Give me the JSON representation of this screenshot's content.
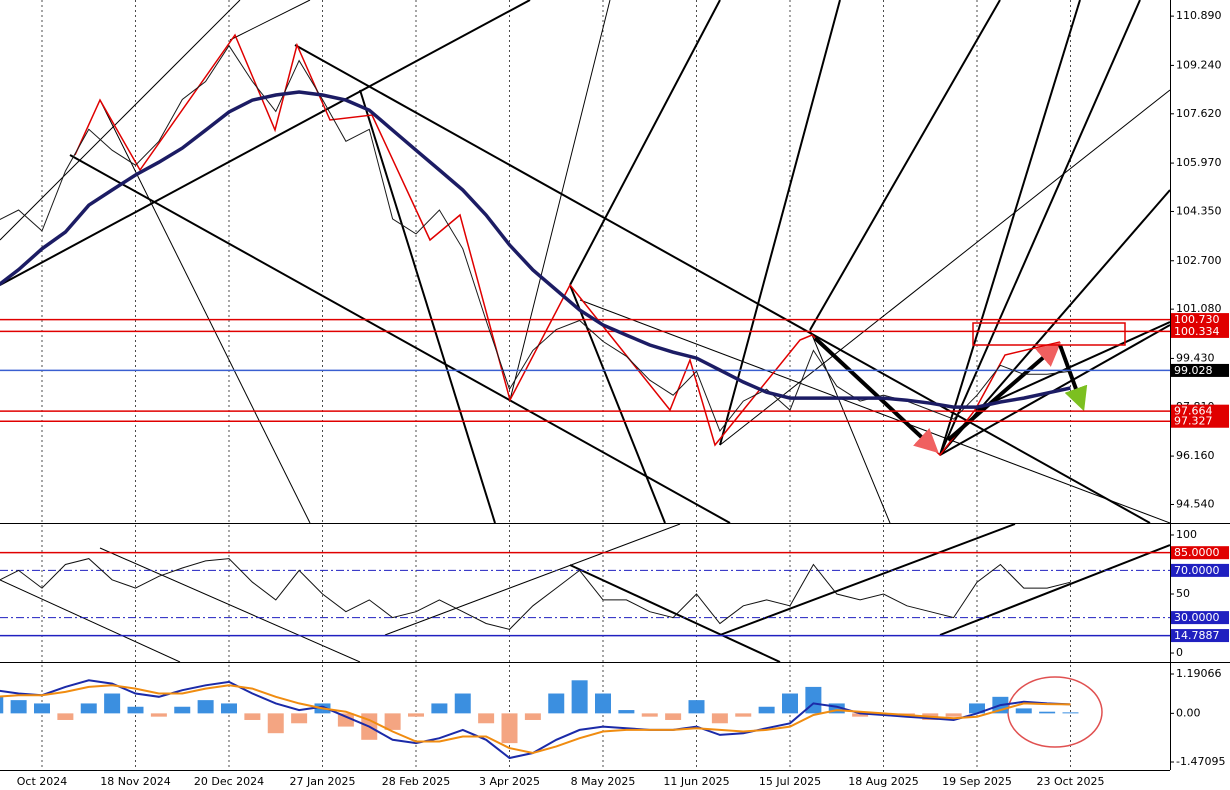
{
  "chart_data": [
    {
      "type": "line",
      "categories": [
        null,
        null,
        "Oct 2024",
        null,
        null,
        null,
        "18 Nov 2024",
        null,
        null,
        null,
        "20 Dec 2024",
        null,
        null,
        null,
        "27 Jan 2025",
        null,
        null,
        null,
        "28 Feb 2025",
        null,
        null,
        null,
        "3 Apr 2025",
        null,
        null,
        null,
        "8 May 2025",
        null,
        null,
        null,
        "11 Jun 2025",
        null,
        null,
        null,
        "15 Jul 2025",
        null,
        null,
        null,
        "18 Aug 2025",
        null,
        null,
        null,
        "19 Sep 2025",
        null,
        null,
        null,
        "23 Oct 2025"
      ],
      "series": [
        {
          "color": "#1a1a1a",
          "values": [
            104.0,
            104.4,
            103.7,
            105.7,
            107.1,
            106.4,
            105.9,
            106.7,
            108.1,
            108.7,
            109.9,
            108.7,
            107.7,
            109.4,
            108.1,
            106.7,
            107.1,
            104.1,
            103.6,
            104.4,
            103.1,
            100.7,
            98.4,
            99.7,
            100.4,
            100.7,
            100.0,
            99.5,
            98.7,
            98.2,
            99.0,
            97.0,
            98.0,
            98.4,
            97.7,
            99.7,
            98.5,
            98.0,
            98.2,
            98.0,
            97.7,
            97.4,
            98.2,
            99.2,
            98.9,
            98.9,
            99.0
          ]
        },
        {
          "color": "#1c1c64",
          "values": [
            101.8,
            102.4,
            103.1,
            103.66,
            104.56,
            105.07,
            105.57,
            106.0,
            106.47,
            107.07,
            107.68,
            108.08,
            108.25,
            108.35,
            108.25,
            108.08,
            107.74,
            107.07,
            106.4,
            105.74,
            105.07,
            104.23,
            103.23,
            102.39,
            101.72,
            101.05,
            100.55,
            100.21,
            99.88,
            99.64,
            99.44,
            99.04,
            98.64,
            98.3,
            98.1,
            98.1,
            98.1,
            98.1,
            98.1,
            98.03,
            97.93,
            97.8,
            97.8,
            97.97,
            98.1,
            98.27,
            98.44
          ]
        }
      ],
      "ylim": [
        93.92,
        111.43
      ],
      "yticks": [
        {
          "value": 110.89,
          "label": "110.890"
        },
        {
          "value": 109.24,
          "label": "109.240"
        },
        {
          "value": 107.62,
          "label": "107.620"
        },
        {
          "value": 105.97,
          "label": "105.970"
        },
        {
          "value": 104.35,
          "label": "104.350"
        },
        {
          "value": 102.7,
          "label": "102.700"
        },
        {
          "value": 101.08,
          "label": "101.080"
        },
        {
          "value": 99.43,
          "label": "99.430"
        },
        {
          "value": 97.81,
          "label": "97.810"
        },
        {
          "value": 96.16,
          "label": "96.160"
        },
        {
          "value": 94.54,
          "label": "94.540"
        }
      ],
      "levels": [
        {
          "value": 100.73,
          "label": "100.730",
          "color": "#e00000",
          "label_color": "#e00000"
        },
        {
          "value": 100.334,
          "label": "100.334",
          "color": "#e00000",
          "label_color": "#e00000"
        },
        {
          "value": 99.028,
          "label": "99.028",
          "color": "#3a5fd0",
          "label_color": "#000000"
        },
        {
          "value": 97.664,
          "label": "97.664",
          "color": "#e00000",
          "label_color": "#e00000"
        },
        {
          "value": 97.327,
          "label": "97.327",
          "color": "#e00000",
          "label_color": "#e00000"
        }
      ]
    },
    {
      "type": "line",
      "series": [
        {
          "color": "#111111",
          "values": [
            60,
            70,
            55,
            75,
            80,
            62,
            55,
            65,
            72,
            78,
            80,
            60,
            45,
            70,
            50,
            35,
            45,
            30,
            35,
            45,
            35,
            25,
            20,
            40,
            55,
            70,
            45,
            45,
            35,
            30,
            50,
            25,
            40,
            45,
            40,
            75,
            50,
            45,
            50,
            40,
            35,
            30,
            60,
            75,
            55,
            55,
            60
          ]
        }
      ],
      "ylim": [
        -7.6,
        109.3
      ],
      "yticks": [
        100,
        50,
        0
      ],
      "levels": [
        {
          "value": 85,
          "label": "85.0000",
          "color": "#e00000",
          "label_color": "#e00000"
        },
        {
          "value": 70,
          "label": "70.0000",
          "color": "#2020c0",
          "label_color": "#2020c0",
          "dash": true
        },
        {
          "value": 30,
          "label": "30.0000",
          "color": "#2020c0",
          "label_color": "#2020c0",
          "dash": true
        },
        {
          "value": 14.7887,
          "label": "14.7887",
          "color": "#2020c0",
          "label_color": "#2020c0"
        }
      ]
    },
    {
      "type": "macd",
      "values": [
        0.5,
        0.4,
        0.3,
        -0.2,
        0.3,
        0.6,
        0.2,
        -0.1,
        0.2,
        0.4,
        0.3,
        -0.2,
        -0.6,
        -0.3,
        0.3,
        -0.4,
        -0.8,
        -0.5,
        -0.1,
        0.3,
        0.6,
        -0.3,
        -0.9,
        -0.2,
        0.6,
        1.0,
        0.6,
        0.1,
        -0.1,
        -0.2,
        0.4,
        -0.3,
        -0.1,
        0.2,
        0.6,
        0.8,
        0.3,
        -0.1,
        0.0,
        -0.1,
        -0.2,
        -0.1,
        0.3,
        0.5,
        0.15,
        0.05,
        0.03
      ],
      "up_color": "#3b8fe0",
      "down_color": "#f4a582",
      "series": [
        {
          "color": "#1b2aa8",
          "values": [
            0.7,
            0.6,
            0.55,
            0.8,
            1.0,
            0.9,
            0.6,
            0.5,
            0.7,
            0.85,
            0.95,
            0.6,
            0.3,
            0.1,
            0.2,
            -0.1,
            -0.4,
            -0.8,
            -0.9,
            -0.75,
            -0.5,
            -0.8,
            -1.35,
            -1.2,
            -0.8,
            -0.5,
            -0.4,
            -0.45,
            -0.5,
            -0.5,
            -0.4,
            -0.65,
            -0.6,
            -0.45,
            -0.3,
            0.3,
            0.2,
            0.0,
            -0.05,
            -0.1,
            -0.15,
            -0.2,
            0.0,
            0.25,
            0.35,
            0.3,
            0.27
          ]
        },
        {
          "color": "#f08c10",
          "values": [
            0.5,
            0.55,
            0.55,
            0.65,
            0.8,
            0.85,
            0.75,
            0.6,
            0.6,
            0.75,
            0.85,
            0.75,
            0.5,
            0.3,
            0.15,
            0.05,
            -0.2,
            -0.55,
            -0.85,
            -0.85,
            -0.7,
            -0.7,
            -1.05,
            -1.2,
            -1.0,
            -0.75,
            -0.55,
            -0.5,
            -0.5,
            -0.5,
            -0.45,
            -0.5,
            -0.55,
            -0.5,
            -0.4,
            -0.05,
            0.1,
            0.05,
            0.0,
            -0.05,
            -0.1,
            -0.15,
            -0.1,
            0.1,
            0.3,
            0.28,
            0.27
          ]
        }
      ],
      "ylim": [
        -1.713,
        1.523
      ],
      "yticks": [
        1.19066,
        {
          "value": 0,
          "label": "0.00"
        },
        -1.47095
      ]
    }
  ]
}
